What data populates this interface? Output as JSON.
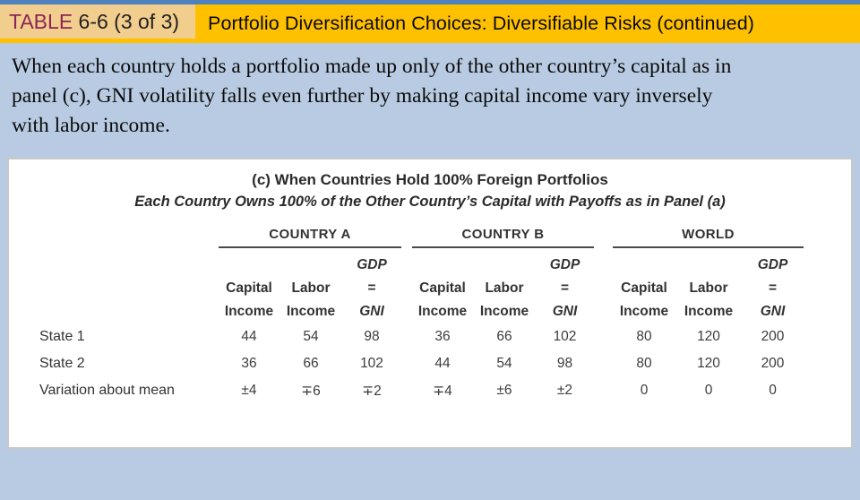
{
  "header": {
    "table_label": "TABLE",
    "table_number": " 6-6 (3 of 3)",
    "title": "Portfolio Diversification Choices: Diversifiable Risks (continued)"
  },
  "caption": {
    "lines": [
      "When each country holds a portfolio made up only of the other country’s capital as in",
      "panel (c), GNI volatility falls even further by making capital income vary inversely",
      "with labor income."
    ]
  },
  "chart_data": {
    "type": "table",
    "title": "(c) When Countries Hold 100% Foreign Portfolios",
    "subtitle": "Each Country Owns 100% of the Other Country’s Capital with Payoffs as in Panel (a)",
    "column_groups": [
      {
        "label": "COUNTRY A",
        "columns": [
          [
            "",
            "Capital",
            "Income"
          ],
          [
            "",
            "Labor",
            "Income"
          ],
          [
            "GDP",
            "=",
            "GNI"
          ]
        ]
      },
      {
        "label": "COUNTRY B",
        "columns": [
          [
            "",
            "Capital",
            "Income"
          ],
          [
            "",
            "Labor",
            "Income"
          ],
          [
            "GDP",
            "=",
            "GNI"
          ]
        ]
      },
      {
        "label": "WORLD",
        "columns": [
          [
            "",
            "Capital",
            "Income"
          ],
          [
            "",
            "Labor",
            "Income"
          ],
          [
            "GDP",
            "=",
            "GNI"
          ]
        ]
      }
    ],
    "rows": [
      {
        "label": "State 1",
        "values": [
          "44",
          "54",
          "98",
          "36",
          "66",
          "102",
          "80",
          "120",
          "200"
        ]
      },
      {
        "label": "State 2",
        "values": [
          "36",
          "66",
          "102",
          "44",
          "54",
          "98",
          "80",
          "120",
          "200"
        ]
      },
      {
        "label": "Variation about mean",
        "values": [
          "±4",
          "∓6",
          "∓2",
          "∓4",
          "±6",
          "±2",
          "0",
          "0",
          "0"
        ]
      }
    ]
  },
  "colors": {
    "background": "#b8cbe2",
    "top_strip": "#4f81bd",
    "band_gold": "#ffc000",
    "tag_tan": "#f2ce8e",
    "tag_text": "#8c2456"
  }
}
